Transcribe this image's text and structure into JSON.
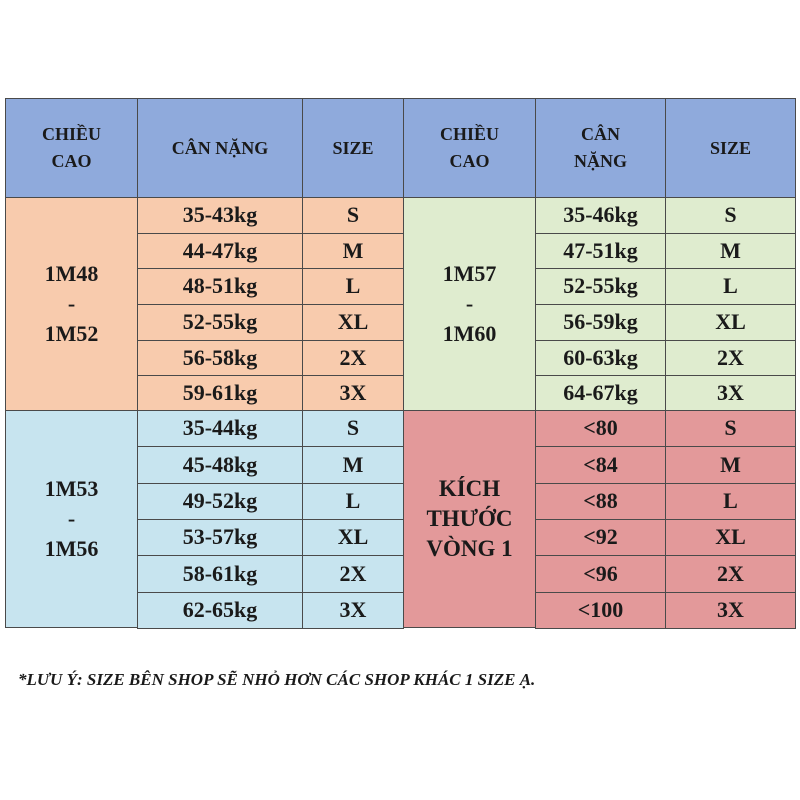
{
  "header": [
    [
      "CHIỀU",
      "CAO"
    ],
    [
      "CÂN NẶNG"
    ],
    [
      "SIZE"
    ],
    [
      "CHIỀU",
      "CAO"
    ],
    [
      "CÂN",
      "NẶNG"
    ],
    [
      "SIZE"
    ]
  ],
  "groups": [
    {
      "label": [
        "1M48",
        "-",
        "1M52"
      ],
      "rows": [
        [
          "35-43kg",
          "S"
        ],
        [
          "44-47kg",
          "M"
        ],
        [
          "48-51kg",
          "L"
        ],
        [
          "52-55kg",
          "XL"
        ],
        [
          "56-58kg",
          "2X"
        ],
        [
          "59-61kg",
          "3X"
        ]
      ]
    },
    {
      "label": [
        "1M57",
        "-",
        "1M60"
      ],
      "rows": [
        [
          "35-46kg",
          "S"
        ],
        [
          "47-51kg",
          "M"
        ],
        [
          "52-55kg",
          "L"
        ],
        [
          "56-59kg",
          "XL"
        ],
        [
          "60-63kg",
          "2X"
        ],
        [
          "64-67kg",
          "3X"
        ]
      ]
    },
    {
      "label": [
        "1M53",
        "-",
        "1M56"
      ],
      "rows": [
        [
          "35-44kg",
          "S"
        ],
        [
          "45-48kg",
          "M"
        ],
        [
          "49-52kg",
          "L"
        ],
        [
          "53-57kg",
          "XL"
        ],
        [
          "58-61kg",
          "2X"
        ],
        [
          "62-65kg",
          "3X"
        ]
      ]
    },
    {
      "label": [
        "KÍCH",
        "THƯỚC",
        "VÒNG 1"
      ],
      "rows": [
        [
          "<80",
          "S"
        ],
        [
          "<84",
          "M"
        ],
        [
          "<88",
          "L"
        ],
        [
          "<92",
          "XL"
        ],
        [
          "<96",
          "2X"
        ],
        [
          "<100",
          "3X"
        ]
      ]
    }
  ],
  "note": "*LƯU Ý: SIZE BÊN SHOP SẼ NHỎ HƠN CÁC SHOP KHÁC 1 SIZE Ạ."
}
